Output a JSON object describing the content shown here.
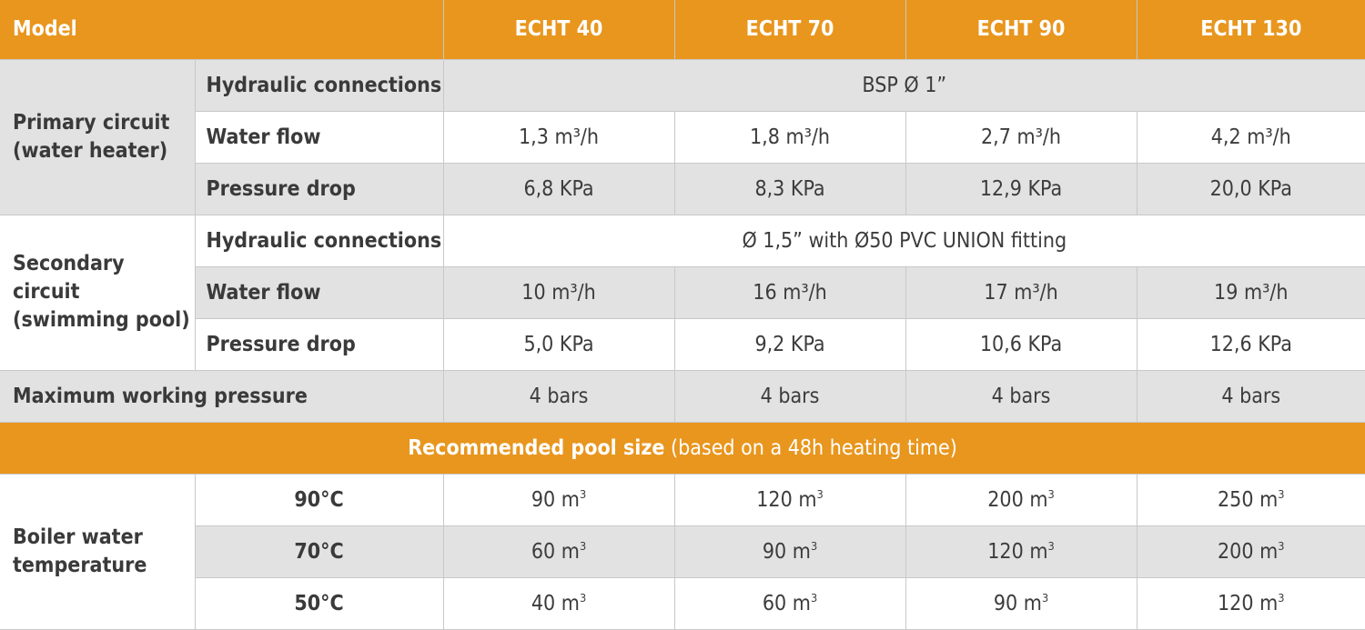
{
  "header": {
    "model_label": "Model",
    "models": [
      "ECHT 40",
      "ECHT 70",
      "ECHT 90",
      "ECHT 130"
    ]
  },
  "primary": {
    "group_label": "Primary circuit (water heater)",
    "hydraulic_label": "Hydraulic connections",
    "hydraulic_value": "BSP Ø 1”",
    "water_flow_label": "Water flow",
    "water_flow": [
      "1,3 m³/h",
      "1,8 m³/h",
      "2,7 m³/h",
      "4,2 m³/h"
    ],
    "pressure_drop_label": "Pressure drop",
    "pressure_drop": [
      "6,8 KPa",
      "8,3 KPa",
      "12,9 KPa",
      "20,0 KPa"
    ]
  },
  "secondary": {
    "group_label": "Secondary circuit (swimming pool)",
    "hydraulic_label": "Hydraulic connections",
    "hydraulic_value": "Ø 1,5” with Ø50 PVC UNION fitting",
    "water_flow_label": "Water flow",
    "water_flow": [
      "10 m³/h",
      "16 m³/h",
      "17 m³/h",
      "19 m³/h"
    ],
    "pressure_drop_label": "Pressure drop",
    "pressure_drop": [
      "5,0 KPa",
      "9,2 KPa",
      "10,6 KPa",
      "12,6 KPa"
    ]
  },
  "max_pressure": {
    "label": "Maximum working pressure",
    "values": [
      "4 bars",
      "4 bars",
      "4 bars",
      "4 bars"
    ]
  },
  "pool_size": {
    "title": "Recommended pool size",
    "note": "(based on a 48h heating time)",
    "group_label": "Boiler water temperature",
    "unit": "m",
    "unit_exp": "3",
    "rows": [
      {
        "temp": "90°C",
        "values": [
          "90",
          "120",
          "200",
          "250"
        ]
      },
      {
        "temp": "70°C",
        "values": [
          "60",
          "90",
          "120",
          "200"
        ]
      },
      {
        "temp": "50°C",
        "values": [
          "40",
          "60",
          "90",
          "120"
        ]
      }
    ]
  },
  "colors": {
    "accent": "#e8961e",
    "row_gray": "#e2e2e2",
    "border": "#c8c8c8",
    "text": "#3c3c3c"
  }
}
